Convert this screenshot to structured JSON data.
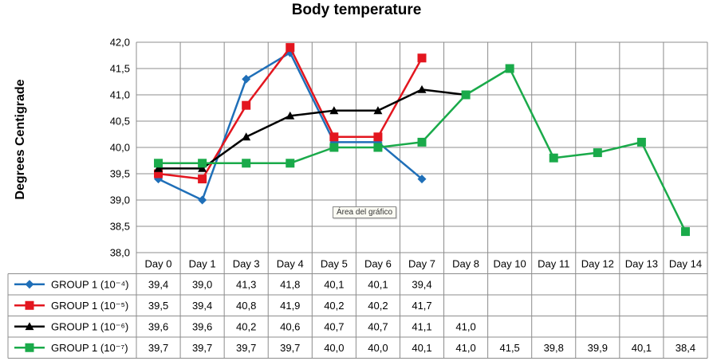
{
  "chart_data": {
    "type": "line",
    "title": "Body temperature",
    "ylabel": "Degrees  Centigrade",
    "xlabel": "",
    "ylim": [
      38.0,
      42.0
    ],
    "yticks": [
      "38,0",
      "38,5",
      "39,0",
      "39,5",
      "40,0",
      "40,5",
      "41,0",
      "41,5",
      "42,0"
    ],
    "categories": [
      "Day 0",
      "Day 1",
      "Day 3",
      "Day 4",
      "Day 5",
      "Day 6",
      "Day 7",
      "Day 8",
      "Day 10",
      "Day 11",
      "Day 12",
      "Day 13",
      "Day 14"
    ],
    "grid": true,
    "legend": "data-table",
    "series": [
      {
        "name": "GROUP  1 (10⁻⁴)",
        "color": "#1f6fb8",
        "marker": "diamond",
        "values": [
          39.4,
          39.0,
          41.3,
          41.8,
          40.1,
          40.1,
          39.4,
          null,
          null,
          null,
          null,
          null,
          null
        ],
        "labels": [
          "39,4",
          "39,0",
          "41,3",
          "41,8",
          "40,1",
          "40,1",
          "39,4",
          "",
          "",
          "",
          "",
          "",
          ""
        ]
      },
      {
        "name": "GROUP  1 (10⁻⁵)",
        "color": "#e3161f",
        "marker": "square",
        "values": [
          39.5,
          39.4,
          40.8,
          41.9,
          40.2,
          40.2,
          41.7,
          null,
          null,
          null,
          null,
          null,
          null
        ],
        "labels": [
          "39,5",
          "39,4",
          "40,8",
          "41,9",
          "40,2",
          "40,2",
          "41,7",
          "",
          "",
          "",
          "",
          "",
          ""
        ]
      },
      {
        "name": "GROUP  1 (10⁻⁶)",
        "color": "#000000",
        "marker": "triangle",
        "values": [
          39.6,
          39.6,
          40.2,
          40.6,
          40.7,
          40.7,
          41.1,
          41.0,
          null,
          null,
          null,
          null,
          null
        ],
        "labels": [
          "39,6",
          "39,6",
          "40,2",
          "40,6",
          "40,7",
          "40,7",
          "41,1",
          "41,0",
          "",
          "",
          "",
          "",
          ""
        ]
      },
      {
        "name": "GROUP  1 (10⁻⁷)",
        "color": "#1aaa4a",
        "marker": "square",
        "values": [
          39.7,
          39.7,
          39.7,
          39.7,
          40.0,
          40.0,
          40.1,
          41.0,
          41.5,
          39.8,
          39.9,
          40.1,
          38.4
        ],
        "labels": [
          "39,7",
          "39,7",
          "39,7",
          "39,7",
          "40,0",
          "40,0",
          "40,1",
          "41,0",
          "41,5",
          "39,8",
          "39,9",
          "40,1",
          "38,4"
        ]
      }
    ]
  },
  "tooltip": "Área del gráfico"
}
